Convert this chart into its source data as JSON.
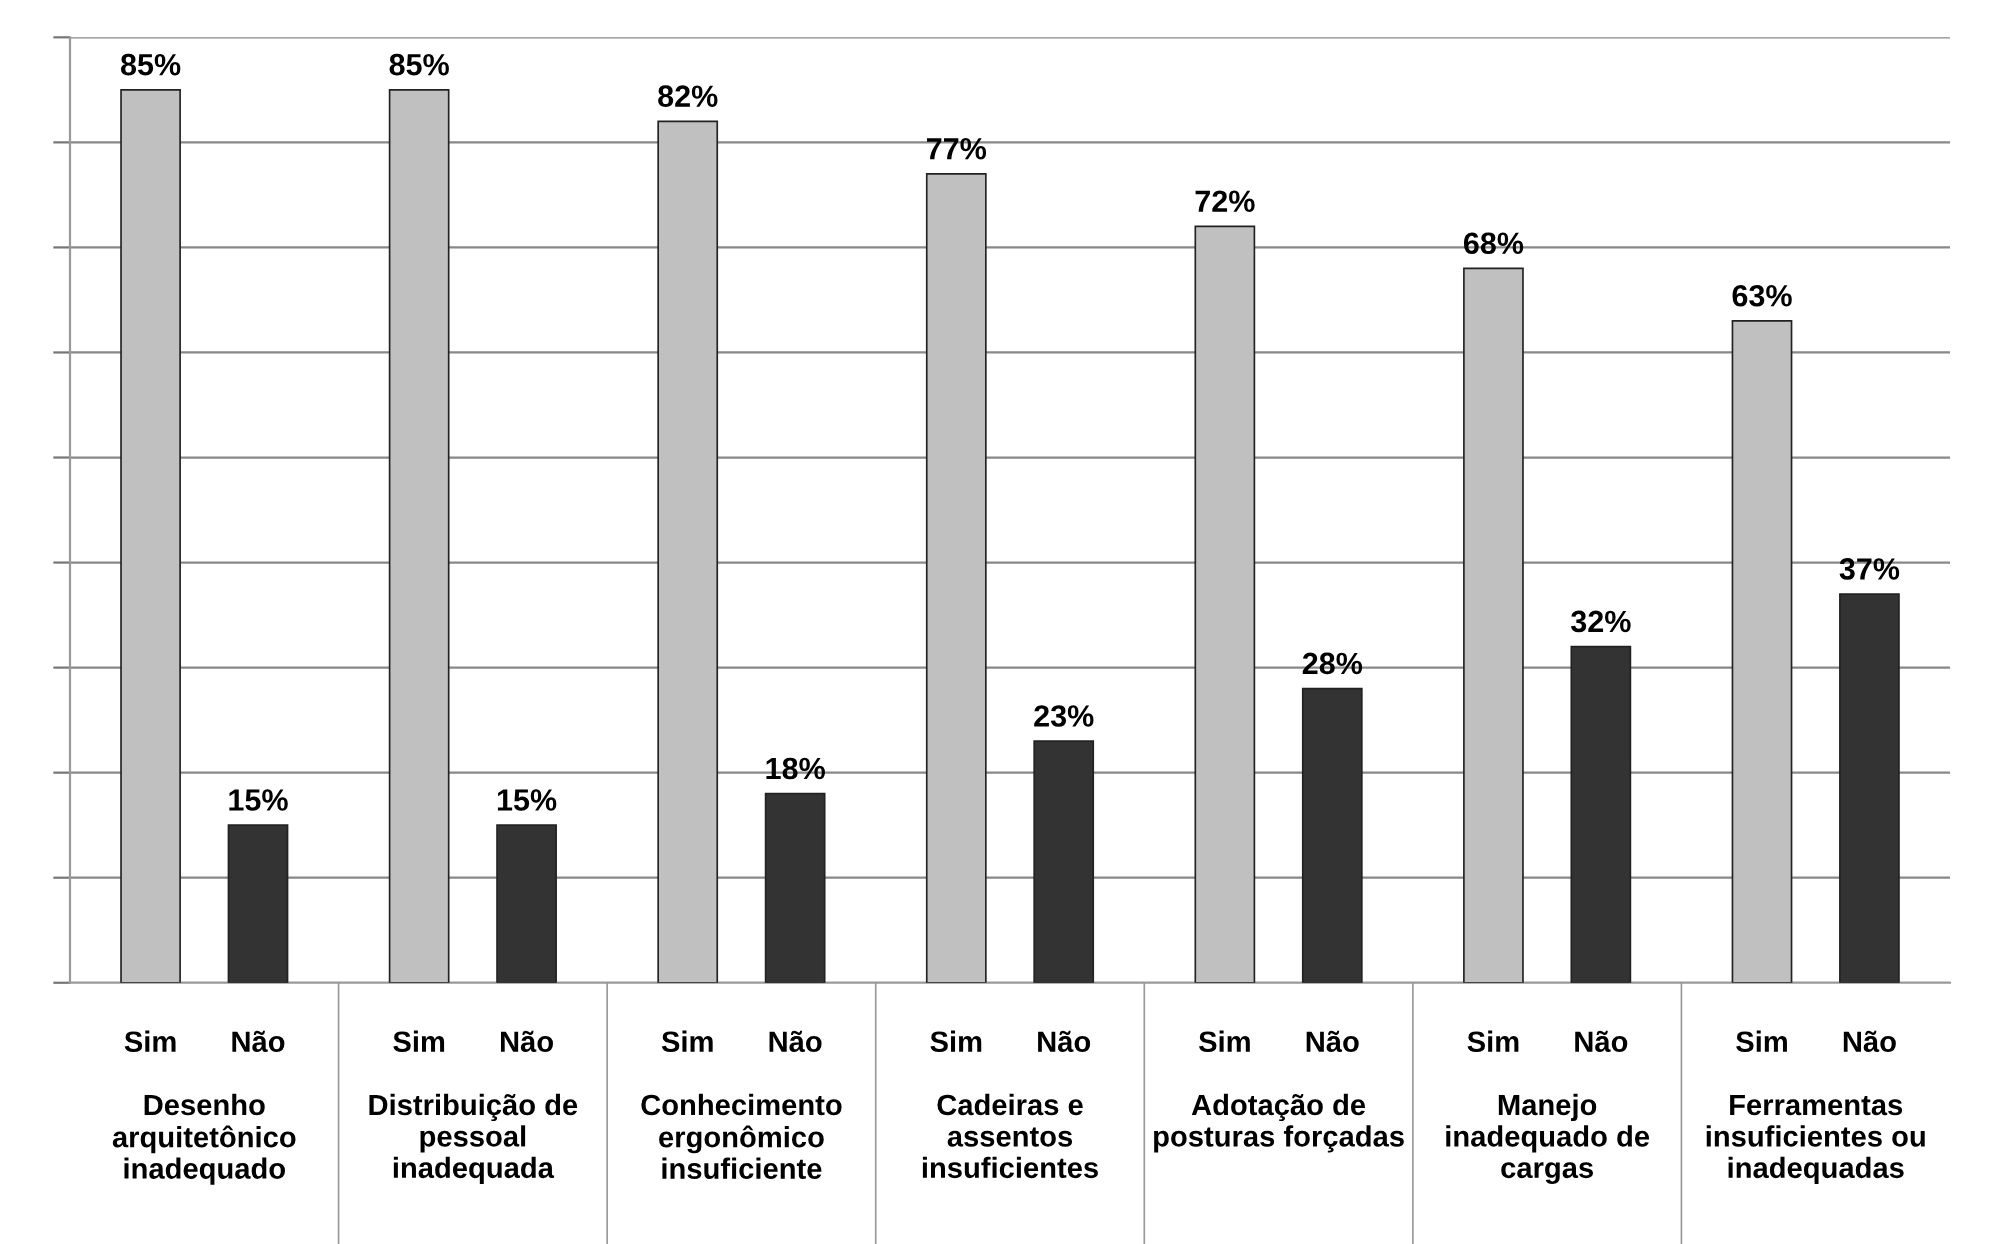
{
  "chart_data": {
    "type": "bar",
    "categories": [
      "Desenho\narquitetônico\ninadequado",
      "Distribuição de\npessoal\ninadequada",
      "Conhecimento\nergonômico\ninsuficiente",
      "Cadeiras e\nassentos\ninsuficientes",
      "Adotação de\nposturas forçadas",
      "Manejo\ninadequado de\ncargas",
      "Ferramentas\ninsuficientes ou\ninadequadas"
    ],
    "series": [
      {
        "name": "Sim",
        "color": "#c0c0c0",
        "values": [
          85,
          85,
          82,
          77,
          72,
          68,
          63
        ],
        "value_labels": [
          "85%",
          "85%",
          "82%",
          "77%",
          "72%",
          "68%",
          "63%"
        ]
      },
      {
        "name": "Não",
        "color": "#333333",
        "values": [
          15,
          15,
          18,
          23,
          28,
          32,
          37
        ],
        "value_labels": [
          "15%",
          "15%",
          "18%",
          "23%",
          "28%",
          "32%",
          "37%"
        ]
      }
    ],
    "ylim": [
      0,
      90
    ],
    "yticks": [
      {
        "value": 0,
        "label": null
      },
      {
        "value": 10,
        "label": null
      },
      {
        "value": 20,
        "label": null
      },
      {
        "value": 30,
        "label": null
      },
      {
        "value": 40,
        "label": null
      },
      {
        "value": 50,
        "label": null
      },
      {
        "value": 60,
        "label": null
      },
      {
        "value": 70,
        "label": null
      },
      {
        "value": 80,
        "label": null
      },
      {
        "value": 90,
        "label": null
      }
    ],
    "grid": "y"
  }
}
